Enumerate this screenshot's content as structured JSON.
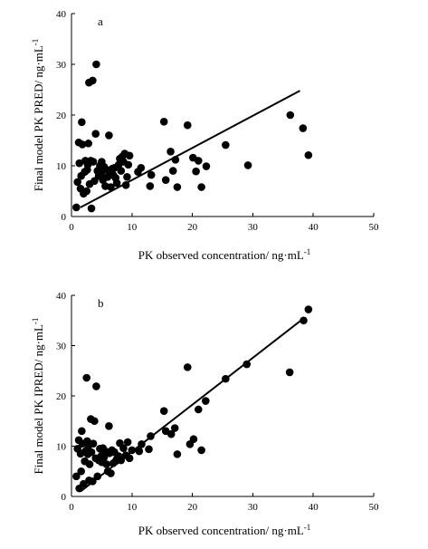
{
  "chart_data": [
    {
      "type": "scatter",
      "panel_label": "a",
      "xlabel": "PK observed concentration/ ng·mL",
      "xlabel_sup": "-1",
      "ylabel": "Final model PK PRED/ ng·mL",
      "ylabel_sup": "-1",
      "xlim": [
        0,
        50
      ],
      "ylim": [
        0,
        40
      ],
      "xticks": [
        "0",
        "10",
        "20",
        "30",
        "40",
        "50"
      ],
      "yticks": [
        "0",
        "10",
        "20",
        "30",
        "40"
      ],
      "grid": false,
      "points": [
        [
          0.8,
          1.8
        ],
        [
          1.0,
          6.8
        ],
        [
          1.2,
          14.6
        ],
        [
          1.3,
          10.5
        ],
        [
          1.5,
          5.5
        ],
        [
          1.6,
          8.0
        ],
        [
          1.7,
          18.6
        ],
        [
          1.8,
          14.2
        ],
        [
          2.0,
          4.5
        ],
        [
          2.2,
          8.8
        ],
        [
          2.3,
          11.0
        ],
        [
          2.5,
          5.0
        ],
        [
          2.6,
          9.2
        ],
        [
          2.7,
          10.2
        ],
        [
          2.8,
          14.4
        ],
        [
          2.9,
          26.4
        ],
        [
          3.0,
          6.4
        ],
        [
          3.2,
          11.0
        ],
        [
          3.3,
          1.6
        ],
        [
          3.5,
          26.8
        ],
        [
          3.6,
          10.8
        ],
        [
          3.8,
          7.0
        ],
        [
          4.0,
          16.3
        ],
        [
          4.1,
          30.0
        ],
        [
          4.3,
          9.0
        ],
        [
          4.5,
          8.0
        ],
        [
          4.7,
          10.0
        ],
        [
          4.9,
          8.5
        ],
        [
          5.0,
          10.8
        ],
        [
          5.2,
          7.2
        ],
        [
          5.4,
          9.8
        ],
        [
          5.6,
          6.0
        ],
        [
          5.8,
          9.2
        ],
        [
          6.0,
          7.8
        ],
        [
          6.2,
          16.0
        ],
        [
          6.3,
          8.5
        ],
        [
          6.5,
          5.8
        ],
        [
          6.7,
          9.4
        ],
        [
          6.9,
          8.2
        ],
        [
          7.1,
          9.6
        ],
        [
          7.3,
          7.6
        ],
        [
          7.5,
          6.6
        ],
        [
          7.8,
          10.2
        ],
        [
          8.0,
          11.4
        ],
        [
          8.2,
          9.0
        ],
        [
          8.4,
          11.8
        ],
        [
          8.6,
          10.8
        ],
        [
          8.8,
          12.4
        ],
        [
          9.0,
          6.2
        ],
        [
          9.2,
          7.8
        ],
        [
          9.4,
          10.2
        ],
        [
          9.6,
          12.0
        ],
        [
          11.0,
          8.8
        ],
        [
          11.5,
          9.6
        ],
        [
          13.0,
          6.0
        ],
        [
          13.2,
          8.2
        ],
        [
          15.3,
          18.7
        ],
        [
          15.6,
          7.2
        ],
        [
          16.4,
          12.8
        ],
        [
          16.8,
          9.0
        ],
        [
          17.2,
          11.2
        ],
        [
          17.5,
          5.8
        ],
        [
          19.2,
          18.0
        ],
        [
          20.1,
          11.6
        ],
        [
          20.6,
          8.9
        ],
        [
          21.0,
          11.0
        ],
        [
          21.5,
          5.8
        ],
        [
          22.3,
          9.9
        ],
        [
          25.5,
          14.1
        ],
        [
          29.2,
          10.1
        ],
        [
          36.2,
          20.0
        ],
        [
          38.3,
          17.4
        ],
        [
          39.2,
          12.1
        ]
      ],
      "fit_line": {
        "x": [
          1.5,
          37.8
        ],
        "y": [
          1.8,
          24.8
        ]
      }
    },
    {
      "type": "scatter",
      "panel_label": "b",
      "xlabel": "PK observed concentration/ ng·mL",
      "xlabel_sup": "-1",
      "ylabel": "Final model PK IPRED/ ng·mL",
      "ylabel_sup": "-1",
      "xlim": [
        0,
        50
      ],
      "ylim": [
        0,
        40
      ],
      "xticks": [
        "0",
        "10",
        "20",
        "30",
        "40",
        "50"
      ],
      "yticks": [
        "0",
        "10",
        "20",
        "30",
        "40"
      ],
      "grid": false,
      "points": [
        [
          0.8,
          4.0
        ],
        [
          1.0,
          9.5
        ],
        [
          1.2,
          11.2
        ],
        [
          1.3,
          1.6
        ],
        [
          1.5,
          8.5
        ],
        [
          1.6,
          5.0
        ],
        [
          1.7,
          13.0
        ],
        [
          1.8,
          10.5
        ],
        [
          2.0,
          2.5
        ],
        [
          2.2,
          7.0
        ],
        [
          2.3,
          9.0
        ],
        [
          2.5,
          23.6
        ],
        [
          2.6,
          11.0
        ],
        [
          2.7,
          8.4
        ],
        [
          2.8,
          10.0
        ],
        [
          2.9,
          3.2
        ],
        [
          3.0,
          6.4
        ],
        [
          3.2,
          15.4
        ],
        [
          3.3,
          8.8
        ],
        [
          3.5,
          3.0
        ],
        [
          3.6,
          10.5
        ],
        [
          3.8,
          15.0
        ],
        [
          4.0,
          7.6
        ],
        [
          4.1,
          21.9
        ],
        [
          4.3,
          4.0
        ],
        [
          4.5,
          7.2
        ],
        [
          4.7,
          9.5
        ],
        [
          4.9,
          8.0
        ],
        [
          5.0,
          6.8
        ],
        [
          5.2,
          9.6
        ],
        [
          5.4,
          7.8
        ],
        [
          5.6,
          9.0
        ],
        [
          5.8,
          6.4
        ],
        [
          6.0,
          5.0
        ],
        [
          6.2,
          14.0
        ],
        [
          6.3,
          8.6
        ],
        [
          6.5,
          4.6
        ],
        [
          6.7,
          9.2
        ],
        [
          6.9,
          6.6
        ],
        [
          7.1,
          8.8
        ],
        [
          7.3,
          7.0
        ],
        [
          7.5,
          7.4
        ],
        [
          7.8,
          8.0
        ],
        [
          8.0,
          10.6
        ],
        [
          8.2,
          7.2
        ],
        [
          8.6,
          9.6
        ],
        [
          9.0,
          8.2
        ],
        [
          9.3,
          10.8
        ],
        [
          9.6,
          7.6
        ],
        [
          10.0,
          9.2
        ],
        [
          11.2,
          9.0
        ],
        [
          11.6,
          10.4
        ],
        [
          12.8,
          9.4
        ],
        [
          13.1,
          12.0
        ],
        [
          15.3,
          17.0
        ],
        [
          15.6,
          13.0
        ],
        [
          16.5,
          12.4
        ],
        [
          17.1,
          13.6
        ],
        [
          17.5,
          8.4
        ],
        [
          19.2,
          25.7
        ],
        [
          19.6,
          10.4
        ],
        [
          20.2,
          11.4
        ],
        [
          21.0,
          17.3
        ],
        [
          21.5,
          9.2
        ],
        [
          22.2,
          19.0
        ],
        [
          25.5,
          23.4
        ],
        [
          29.0,
          26.3
        ],
        [
          36.1,
          24.7
        ],
        [
          38.4,
          35.0
        ],
        [
          39.2,
          37.2
        ]
      ],
      "fit_line": {
        "x": [
          1.5,
          38.5
        ],
        "y": [
          1.0,
          35.5
        ]
      }
    }
  ]
}
